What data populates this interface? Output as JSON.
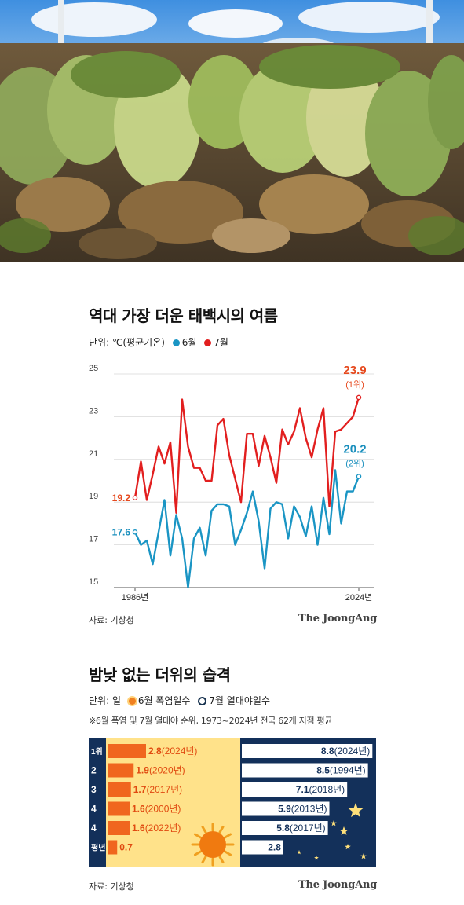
{
  "chart1": {
    "title": "역대 가장 더운 태백시의 여름",
    "unit_label": "단위: ℃(평균기온)",
    "legend": [
      {
        "name": "6월",
        "color": "#1a95c4"
      },
      {
        "name": "7월",
        "color": "#e21f1f"
      }
    ],
    "source": "자료: 기상청",
    "brand": "The JoongAng"
  },
  "chart2": {
    "title": "밤낮 없는 더위의 습격",
    "unit_label": "단위: 일",
    "legend": [
      {
        "name": "6월 폭염일수",
        "color": "#f08020"
      },
      {
        "name": "7월 열대야일수",
        "color": "#17324f"
      }
    ],
    "note": "※6월 폭염 및 7월 열대야 순위, 1973~2024년 전국 62개 지점 평균",
    "source": "자료: 기상청",
    "brand": "The JoongAng"
  },
  "chart_data": [
    {
      "type": "line",
      "title": "역대 가장 더운 태백시의 여름",
      "ylim": [
        15,
        25
      ],
      "y_ticks": [
        15,
        17,
        19,
        21,
        23,
        25
      ],
      "x_range": [
        1986,
        2024
      ],
      "x_tick_labels": [
        "1986년",
        "2024년"
      ],
      "grid": true,
      "legend_position": "top-left",
      "x": [
        1986,
        1987,
        1988,
        1989,
        1990,
        1991,
        1992,
        1993,
        1994,
        1995,
        1996,
        1997,
        1998,
        1999,
        2000,
        2001,
        2002,
        2003,
        2004,
        2005,
        2006,
        2007,
        2008,
        2009,
        2010,
        2011,
        2012,
        2013,
        2014,
        2015,
        2016,
        2017,
        2018,
        2019,
        2020,
        2021,
        2022,
        2023,
        2024
      ],
      "series": [
        {
          "name": "6월",
          "color": "#1a95c4",
          "values": [
            17.6,
            17.0,
            17.2,
            16.1,
            17.6,
            19.1,
            16.5,
            18.4,
            17.3,
            15.0,
            17.3,
            17.8,
            16.5,
            18.6,
            18.9,
            18.9,
            18.8,
            17.0,
            17.7,
            18.5,
            19.5,
            18.1,
            15.9,
            18.7,
            19.0,
            18.9,
            17.3,
            18.8,
            18.3,
            17.4,
            18.8,
            17.0,
            19.2,
            17.5,
            20.5,
            18.0,
            19.5,
            19.5,
            20.2
          ],
          "labels": [
            {
              "x": 1986,
              "text": "17.6"
            },
            {
              "x": 2024,
              "text": "20.2",
              "note": "(2위)"
            }
          ]
        },
        {
          "name": "7월",
          "color": "#e21f1f",
          "values": [
            19.2,
            20.9,
            19.1,
            20.3,
            21.6,
            20.8,
            21.8,
            18.5,
            23.8,
            21.6,
            20.6,
            20.6,
            20.0,
            20.0,
            22.6,
            22.9,
            21.2,
            20.1,
            19.0,
            22.2,
            22.2,
            20.7,
            22.1,
            21.1,
            19.9,
            22.4,
            21.7,
            22.3,
            23.4,
            22.0,
            21.1,
            22.4,
            23.4,
            18.8,
            22.3,
            22.4,
            22.7,
            23.0,
            23.9
          ],
          "labels": [
            {
              "x": 1986,
              "text": "19.2"
            },
            {
              "x": 2024,
              "text": "23.9",
              "note": "(1위)"
            }
          ]
        }
      ]
    },
    {
      "type": "bar",
      "title": "밤낮 없는 더위의 습격",
      "ranks": [
        "1위",
        "2",
        "3",
        "4",
        "4",
        "평년"
      ],
      "series": [
        {
          "name": "6월 폭염일수",
          "color": "#f0661e",
          "values": [
            2.8,
            1.9,
            1.7,
            1.6,
            1.6,
            0.7
          ],
          "years": [
            "(2024년)",
            "(2020년)",
            "(2017년)",
            "(2000년)",
            "(2022년)",
            ""
          ]
        },
        {
          "name": "7월 열대야일수",
          "color": "#ffffff",
          "values": [
            8.8,
            8.5,
            7.1,
            5.9,
            5.8,
            2.8
          ],
          "years": [
            "(2024년)",
            "(1994년)",
            "(2018년)",
            "(2013년)",
            "(2017년)",
            ""
          ]
        }
      ]
    }
  ]
}
